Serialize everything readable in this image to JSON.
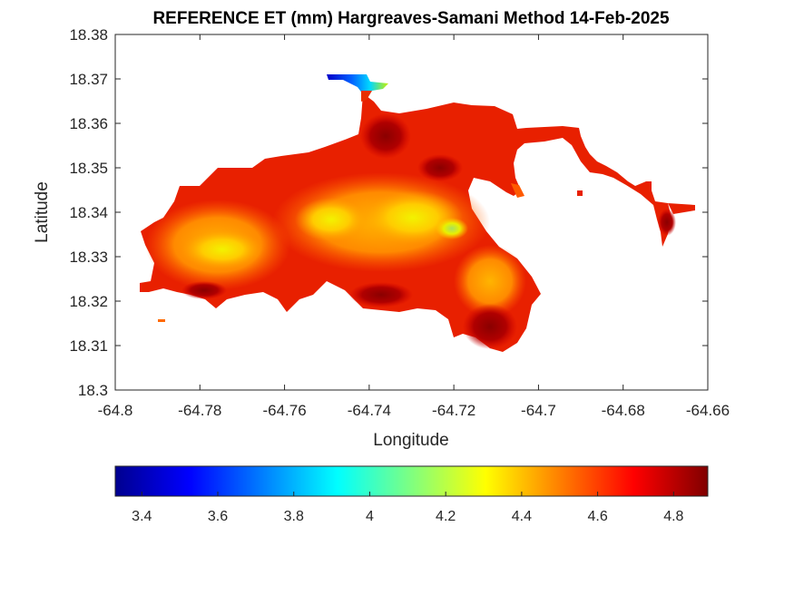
{
  "chart_data": {
    "type": "heatmap",
    "title": "REFERENCE ET (mm) Hargreaves-Samani Method  14-Feb-2025",
    "xlabel": "Longitude",
    "ylabel": "Latitude",
    "xlim": [
      -64.8,
      -64.66
    ],
    "ylim": [
      18.3,
      18.38
    ],
    "xticks": [
      "-64.8",
      "-64.78",
      "-64.76",
      "-64.74",
      "-64.72",
      "-64.7",
      "-64.68",
      "-64.66"
    ],
    "yticks": [
      "18.3",
      "18.31",
      "18.32",
      "18.33",
      "18.34",
      "18.35",
      "18.36",
      "18.37",
      "18.38"
    ],
    "colormap": "jet",
    "clim": [
      3.33,
      4.89
    ],
    "colorbar_ticks": [
      "3.4",
      "3.6",
      "3.8",
      "4",
      "4.2",
      "4.4",
      "4.6",
      "4.8"
    ],
    "colorbar_location": "south",
    "grid": false,
    "hotspots": [
      {
        "lon": -64.724,
        "lat": 18.336,
        "value": 4.25
      },
      {
        "lon": -64.733,
        "lat": 18.34,
        "value": 4.35
      },
      {
        "lon": -64.748,
        "lat": 18.34,
        "value": 4.4
      },
      {
        "lon": -64.777,
        "lat": 18.332,
        "value": 4.4
      },
      {
        "lon": -64.742,
        "lat": 18.354,
        "value": 4.85
      },
      {
        "lon": -64.74,
        "lat": 18.358,
        "value": 4.85
      },
      {
        "lon": -64.712,
        "lat": 18.313,
        "value": 4.85
      },
      {
        "lon": -64.723,
        "lat": 18.349,
        "value": 4.85
      },
      {
        "lon": -64.745,
        "lat": 18.369,
        "value": 3.4
      },
      {
        "lon": -64.741,
        "lat": 18.369,
        "value": 4.1
      }
    ]
  }
}
